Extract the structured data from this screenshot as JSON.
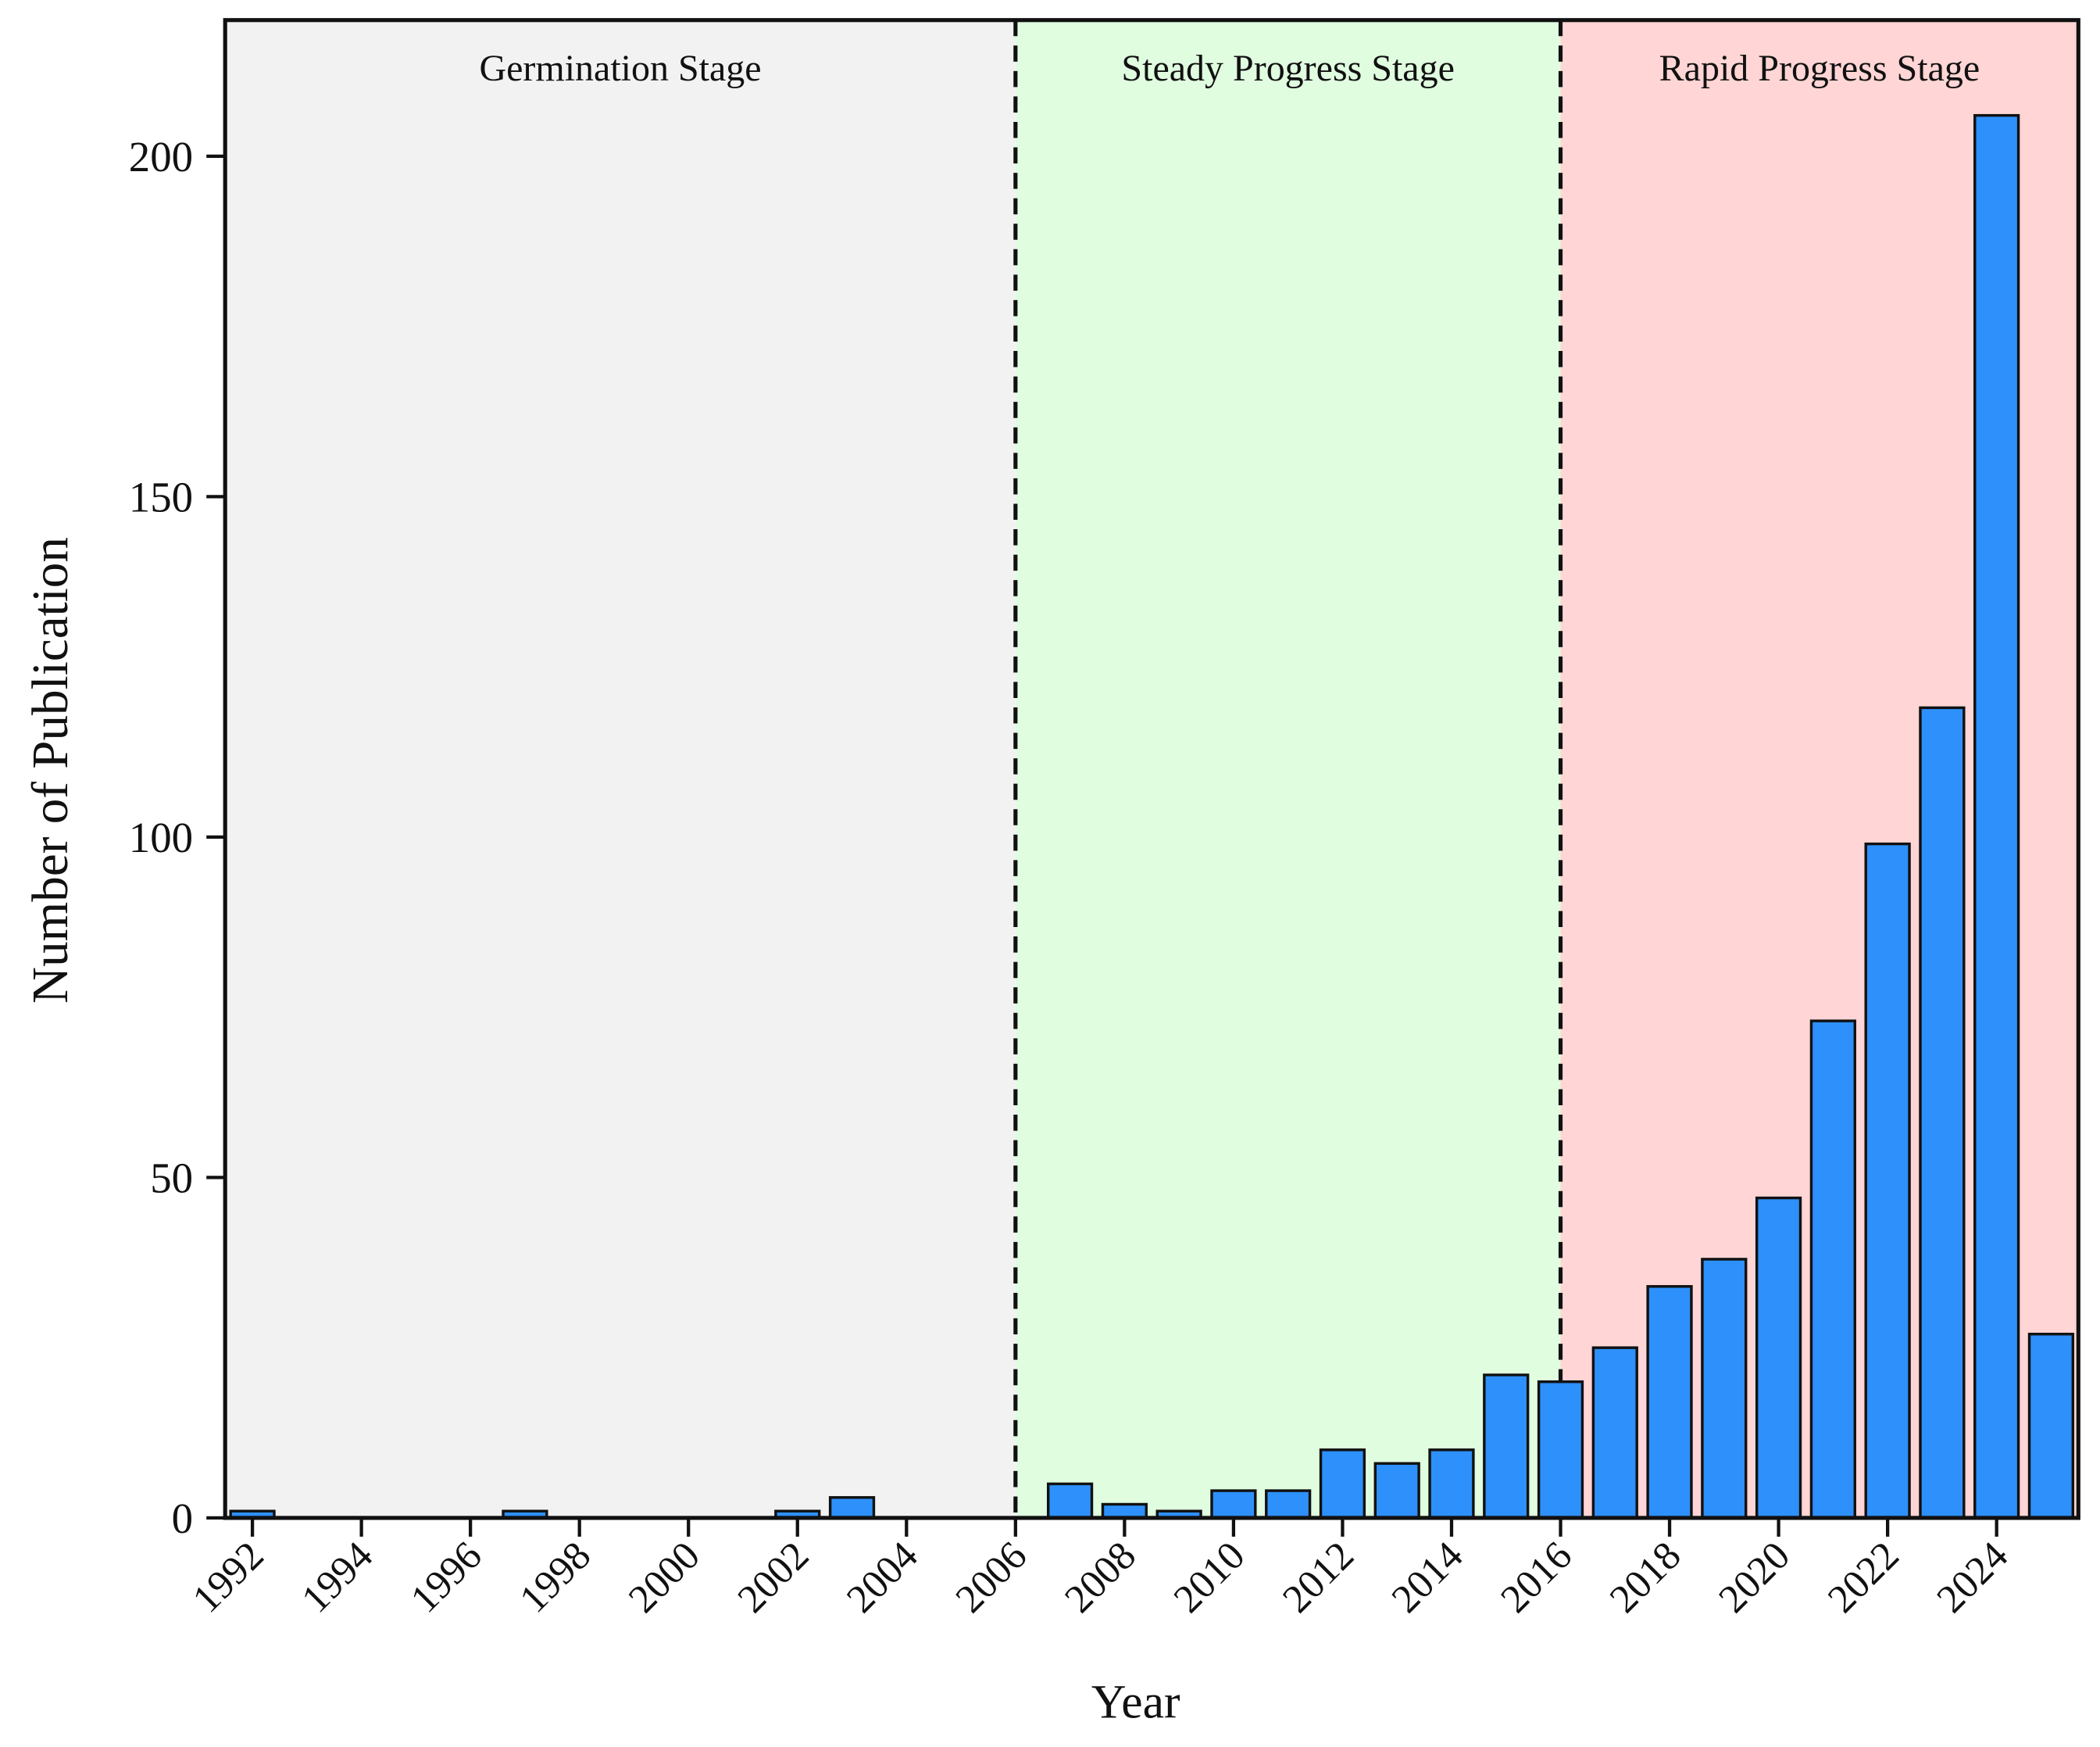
{
  "chart_data": {
    "type": "bar",
    "x_label": "Year",
    "y_label": "Number of Publication",
    "x": [
      1992,
      1993,
      1994,
      1995,
      1996,
      1997,
      1998,
      1999,
      2000,
      2001,
      2002,
      2003,
      2004,
      2005,
      2006,
      2007,
      2008,
      2009,
      2010,
      2011,
      2012,
      2013,
      2014,
      2015,
      2016,
      2017,
      2018,
      2019,
      2020,
      2021,
      2022,
      2023,
      2024,
      2025
    ],
    "values": [
      1,
      0,
      0,
      0,
      0,
      1,
      0,
      0,
      0,
      0,
      1,
      3,
      0,
      0,
      0,
      5,
      2,
      1,
      4,
      4,
      10,
      8,
      10,
      21,
      20,
      25,
      34,
      38,
      47,
      73,
      99,
      119,
      206,
      27
    ],
    "color": "#2e90fa",
    "xlim": [
      1991.5,
      2025.5
    ],
    "ylim": [
      0,
      220
    ],
    "xticks": [
      1992,
      1994,
      1996,
      1998,
      2000,
      2002,
      2004,
      2006,
      2008,
      2010,
      2012,
      2014,
      2016,
      2018,
      2020,
      2022,
      2024
    ],
    "yticks": [
      0,
      50,
      100,
      150,
      200
    ],
    "regions": [
      {
        "label": "Germination Stage",
        "start": 1991.5,
        "end": 2006,
        "color": "#f2f2f2"
      },
      {
        "label": "Steady Progress Stage",
        "start": 2006,
        "end": 2016,
        "color": "#e0fde0"
      },
      {
        "label": "Rapid Progress Stage",
        "start": 2016,
        "end": 2025.5,
        "color": "#ffd5d5"
      }
    ]
  }
}
